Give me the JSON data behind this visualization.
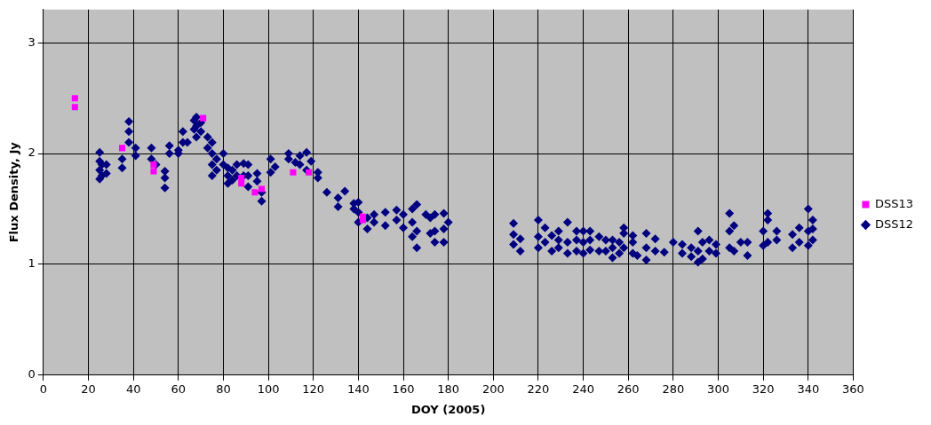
{
  "chart_data": {
    "type": "scatter",
    "xlabel": "DOY (2005)",
    "ylabel": "Flux Density, Jy",
    "xlim": [
      0,
      360
    ],
    "xticks": [
      0,
      20,
      40,
      60,
      80,
      100,
      120,
      140,
      160,
      180,
      200,
      220,
      240,
      260,
      280,
      300,
      320,
      340,
      360
    ],
    "ylim": [
      0,
      3.3
    ],
    "yticks": [
      0,
      1,
      2,
      3
    ],
    "grid": true,
    "legend": "right",
    "series": [
      {
        "name": "DSS12",
        "color": "#000080",
        "marker": "diamond",
        "x": [
          25,
          25,
          25,
          25,
          26,
          26,
          28,
          28,
          35,
          35,
          38,
          38,
          38,
          41,
          41,
          48,
          48,
          50,
          54,
          54,
          54,
          56,
          56,
          60,
          60,
          62,
          62,
          64,
          67,
          67,
          68,
          68,
          68,
          70,
          70,
          73,
          73,
          75,
          75,
          75,
          75,
          77,
          77,
          80,
          80,
          82,
          82,
          82,
          84,
          84,
          86,
          86,
          89,
          89,
          91,
          91,
          91,
          95,
          95,
          97,
          97,
          101,
          101,
          103,
          109,
          109,
          112,
          114,
          114,
          117,
          117,
          119,
          122,
          122,
          126,
          131,
          131,
          134,
          138,
          138,
          140,
          140,
          140,
          144,
          144,
          147,
          147,
          152,
          152,
          157,
          157,
          160,
          160,
          164,
          164,
          164,
          166,
          166,
          166,
          170,
          172,
          172,
          174,
          174,
          174,
          178,
          178,
          178,
          180,
          209,
          209,
          209,
          212,
          212,
          220,
          220,
          220,
          223,
          223,
          226,
          226,
          229,
          229,
          229,
          233,
          233,
          233,
          237,
          237,
          237,
          240,
          240,
          240,
          243,
          243,
          243,
          247,
          247,
          250,
          250,
          253,
          253,
          253,
          256,
          256,
          258,
          258,
          258,
          262,
          262,
          262,
          264,
          268,
          268,
          268,
          272,
          272,
          276,
          280,
          284,
          284,
          288,
          288,
          291,
          291,
          291,
          293,
          293,
          296,
          296,
          299,
          299,
          305,
          305,
          305,
          307,
          307,
          310,
          313,
          313,
          320,
          320,
          322,
          322,
          322,
          326,
          326,
          333,
          333,
          336,
          336,
          340,
          340,
          340,
          342,
          342,
          342
        ],
        "values": [
          2.01,
          1.93,
          1.85,
          1.77,
          1.8,
          1.9,
          1.82,
          1.9,
          1.87,
          1.95,
          2.1,
          2.2,
          2.29,
          1.98,
          2.05,
          2.05,
          1.95,
          1.9,
          1.69,
          1.78,
          1.84,
          2.0,
          2.07,
          2.0,
          2.03,
          2.1,
          2.2,
          2.1,
          2.22,
          2.3,
          2.15,
          2.25,
          2.33,
          2.2,
          2.28,
          2.05,
          2.15,
          1.8,
          1.9,
          2.0,
          2.1,
          1.85,
          1.95,
          1.9,
          2.0,
          1.73,
          1.8,
          1.87,
          1.76,
          1.85,
          1.8,
          1.9,
          1.8,
          1.91,
          1.7,
          1.8,
          1.9,
          1.82,
          1.75,
          1.57,
          1.65,
          1.83,
          1.95,
          1.88,
          1.95,
          2.0,
          1.92,
          1.9,
          1.98,
          1.85,
          2.01,
          1.93,
          1.78,
          1.83,
          1.65,
          1.6,
          1.52,
          1.66,
          1.5,
          1.55,
          1.38,
          1.47,
          1.56,
          1.32,
          1.42,
          1.38,
          1.45,
          1.35,
          1.47,
          1.4,
          1.49,
          1.33,
          1.45,
          1.25,
          1.38,
          1.5,
          1.15,
          1.3,
          1.54,
          1.45,
          1.28,
          1.42,
          1.2,
          1.3,
          1.45,
          1.2,
          1.32,
          1.46,
          1.38,
          1.18,
          1.27,
          1.37,
          1.12,
          1.23,
          1.15,
          1.25,
          1.4,
          1.2,
          1.33,
          1.12,
          1.26,
          1.15,
          1.22,
          1.3,
          1.1,
          1.2,
          1.38,
          1.12,
          1.22,
          1.3,
          1.1,
          1.2,
          1.3,
          1.13,
          1.22,
          1.3,
          1.12,
          1.25,
          1.12,
          1.22,
          1.06,
          1.15,
          1.22,
          1.1,
          1.2,
          1.15,
          1.28,
          1.33,
          1.1,
          1.2,
          1.26,
          1.08,
          1.04,
          1.15,
          1.28,
          1.12,
          1.23,
          1.11,
          1.2,
          1.1,
          1.18,
          1.07,
          1.15,
          1.02,
          1.12,
          1.3,
          1.05,
          1.2,
          1.12,
          1.22,
          1.1,
          1.18,
          1.15,
          1.3,
          1.46,
          1.12,
          1.35,
          1.2,
          1.08,
          1.2,
          1.17,
          1.3,
          1.2,
          1.4,
          1.46,
          1.22,
          1.3,
          1.15,
          1.27,
          1.2,
          1.33,
          1.17,
          1.3,
          1.5,
          1.22,
          1.32,
          1.4
        ]
      },
      {
        "name": "DSS13",
        "color": "#ff00ff",
        "marker": "square",
        "x": [
          14,
          14,
          35,
          49,
          49,
          71,
          88,
          88,
          94,
          97,
          111,
          118,
          142,
          142
        ],
        "values": [
          2.42,
          2.5,
          2.05,
          1.84,
          1.9,
          2.32,
          1.73,
          1.78,
          1.65,
          1.68,
          1.83,
          1.83,
          1.4,
          1.43
        ]
      }
    ]
  }
}
